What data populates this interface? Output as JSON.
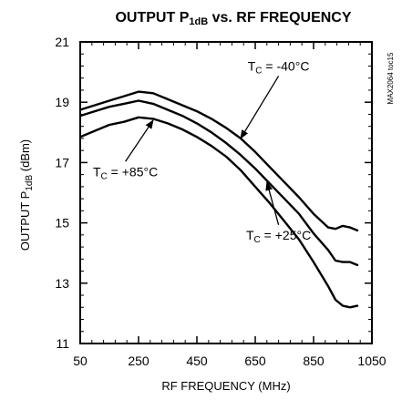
{
  "chart_data": {
    "type": "line",
    "title": "OUTPUT P1dB vs. RF FREQUENCY",
    "title_parts": {
      "prefix": "OUTPUT P",
      "sub": "1dB",
      "suffix": " vs. RF FREQUENCY"
    },
    "xlabel": "RF FREQUENCY (MHz)",
    "ylabel_parts": {
      "prefix": "OUTPUT P",
      "sub": "1dB",
      "suffix": " (dBm)"
    },
    "xlim": [
      50,
      1050
    ],
    "ylim": [
      11,
      21
    ],
    "xticks": [
      50,
      250,
      450,
      650,
      850,
      1050
    ],
    "yticks": [
      11,
      13,
      15,
      17,
      19,
      21
    ],
    "grid": false,
    "side_note": "MAX2064 toc15",
    "series": [
      {
        "name": "TC = -40°C",
        "label_parts": {
          "prefix": "T",
          "sub": "C",
          "suffix": " = -40°C"
        },
        "x": [
          50,
          100,
          150,
          200,
          250,
          300,
          350,
          400,
          450,
          500,
          550,
          600,
          650,
          700,
          750,
          800,
          850,
          900,
          925,
          950,
          975,
          1000
        ],
        "y": [
          18.75,
          18.9,
          19.05,
          19.2,
          19.35,
          19.3,
          19.1,
          18.9,
          18.7,
          18.45,
          18.15,
          17.8,
          17.35,
          16.85,
          16.35,
          15.85,
          15.3,
          14.85,
          14.8,
          14.9,
          14.85,
          14.75
        ]
      },
      {
        "name": "TC = +25°C",
        "label_parts": {
          "prefix": "T",
          "sub": "C",
          "suffix": " = +25°C"
        },
        "x": [
          50,
          100,
          150,
          200,
          250,
          300,
          350,
          400,
          450,
          500,
          550,
          600,
          650,
          700,
          750,
          800,
          850,
          900,
          925,
          950,
          975,
          1000
        ],
        "y": [
          18.55,
          18.7,
          18.85,
          18.95,
          19.05,
          18.95,
          18.75,
          18.55,
          18.3,
          18.0,
          17.65,
          17.25,
          16.8,
          16.3,
          15.8,
          15.3,
          14.65,
          14.1,
          13.75,
          13.7,
          13.7,
          13.6
        ]
      },
      {
        "name": "TC = +85°C",
        "label_parts": {
          "prefix": "T",
          "sub": "C",
          "suffix": " = +85°C"
        },
        "x": [
          50,
          100,
          150,
          200,
          250,
          300,
          350,
          400,
          450,
          500,
          550,
          600,
          650,
          700,
          750,
          800,
          850,
          900,
          925,
          950,
          975,
          1000
        ],
        "y": [
          17.85,
          18.05,
          18.25,
          18.35,
          18.5,
          18.45,
          18.3,
          18.1,
          17.85,
          17.55,
          17.2,
          16.75,
          16.2,
          15.65,
          15.05,
          14.45,
          13.7,
          12.9,
          12.45,
          12.25,
          12.2,
          12.25
        ]
      }
    ],
    "annotations": [
      {
        "series_index": 0,
        "text_x": 730,
        "text_y": 20.05,
        "arrow_to": [
          600,
          17.8
        ]
      },
      {
        "series_index": 1,
        "text_x": 730,
        "text_y": 14.45,
        "arrow_to": [
          690,
          16.35
        ]
      },
      {
        "series_index": 2,
        "text_x": 205,
        "text_y": 16.55,
        "arrow_to": [
          300,
          18.4
        ]
      }
    ]
  }
}
